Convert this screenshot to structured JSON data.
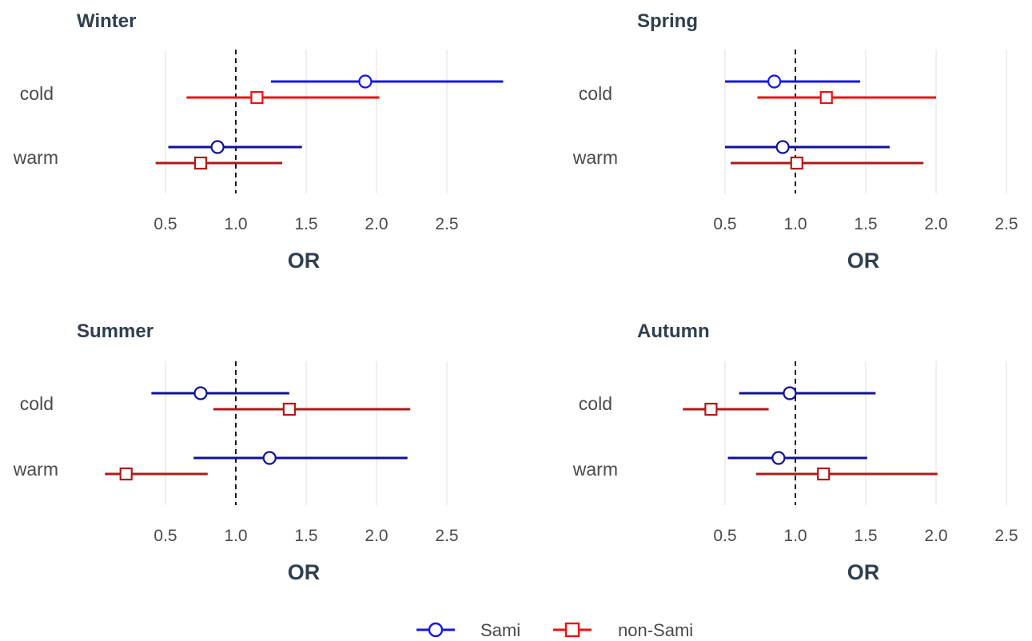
{
  "chart_data": [
    {
      "type": "forest",
      "title": "Winter",
      "xlabel": "OR",
      "categories": [
        "cold",
        "warm"
      ],
      "xticks": [
        0.5,
        1.0,
        1.5,
        2.0,
        2.5
      ],
      "xtick_labels": [
        "0.5",
        "1.0",
        "1.5",
        "2.0",
        "2.5"
      ],
      "xlim": [
        0.35,
        2.95
      ],
      "reference_line": 1.0,
      "series": [
        {
          "name": "Sami",
          "points": [
            {
              "category": "cold",
              "estimate": 1.92,
              "lower": 1.25,
              "upper": 2.9,
              "color": "#1414f0"
            },
            {
              "category": "warm",
              "estimate": 0.87,
              "lower": 0.52,
              "upper": 1.47,
              "color": "#10109a"
            }
          ]
        },
        {
          "name": "non-Sami",
          "points": [
            {
              "category": "cold",
              "estimate": 1.15,
              "lower": 0.65,
              "upper": 2.02,
              "color": "#ee1111"
            },
            {
              "category": "warm",
              "estimate": 0.75,
              "lower": 0.43,
              "upper": 1.33,
              "color": "#b21818"
            }
          ]
        }
      ]
    },
    {
      "type": "forest",
      "title": "Spring",
      "xlabel": "OR",
      "categories": [
        "cold",
        "warm"
      ],
      "xticks": [
        0.5,
        1.0,
        1.5,
        2.0,
        2.5
      ],
      "xtick_labels": [
        "0.5",
        "1.0",
        "1.5",
        "2.0",
        "2.5"
      ],
      "xlim": [
        0.35,
        2.95
      ],
      "reference_line": 1.0,
      "series": [
        {
          "name": "Sami",
          "points": [
            {
              "category": "cold",
              "estimate": 0.85,
              "lower": 0.5,
              "upper": 1.46,
              "color": "#1414f0"
            },
            {
              "category": "warm",
              "estimate": 0.91,
              "lower": 0.5,
              "upper": 1.67,
              "color": "#10109a"
            }
          ]
        },
        {
          "name": "non-Sami",
          "points": [
            {
              "category": "cold",
              "estimate": 1.22,
              "lower": 0.73,
              "upper": 2.0,
              "color": "#ee1111"
            },
            {
              "category": "warm",
              "estimate": 1.01,
              "lower": 0.54,
              "upper": 1.91,
              "color": "#b21818"
            }
          ]
        }
      ]
    },
    {
      "type": "forest",
      "title": "Summer",
      "xlabel": "OR",
      "categories": [
        "cold",
        "warm"
      ],
      "xticks": [
        0.5,
        1.0,
        1.5,
        2.0,
        2.5
      ],
      "xtick_labels": [
        "0.5",
        "1.0",
        "1.5",
        "2.0",
        "2.5"
      ],
      "xlim": [
        0.35,
        2.95
      ],
      "reference_line": 1.0,
      "series": [
        {
          "name": "Sami",
          "points": [
            {
              "category": "cold",
              "estimate": 0.75,
              "lower": 0.4,
              "upper": 1.38,
              "color": "#10109a"
            },
            {
              "category": "warm",
              "estimate": 1.24,
              "lower": 0.7,
              "upper": 2.22,
              "color": "#10109a"
            }
          ]
        },
        {
          "name": "non-Sami",
          "points": [
            {
              "category": "cold",
              "estimate": 1.38,
              "lower": 0.84,
              "upper": 2.24,
              "color": "#b21818"
            },
            {
              "category": "warm",
              "estimate": 0.22,
              "lower": 0.07,
              "upper": 0.8,
              "color": "#b21818"
            }
          ]
        }
      ]
    },
    {
      "type": "forest",
      "title": "Autumn",
      "xlabel": "OR",
      "categories": [
        "cold",
        "warm"
      ],
      "xticks": [
        0.5,
        1.0,
        1.5,
        2.0,
        2.5
      ],
      "xtick_labels": [
        "0.5",
        "1.0",
        "1.5",
        "2.0",
        "2.5"
      ],
      "xlim": [
        0.35,
        2.95
      ],
      "reference_line": 1.0,
      "series": [
        {
          "name": "Sami",
          "points": [
            {
              "category": "cold",
              "estimate": 0.96,
              "lower": 0.6,
              "upper": 1.57,
              "color": "#10109a"
            },
            {
              "category": "warm",
              "estimate": 0.88,
              "lower": 0.52,
              "upper": 1.51,
              "color": "#10109a"
            }
          ]
        },
        {
          "name": "non-Sami",
          "points": [
            {
              "category": "cold",
              "estimate": 0.4,
              "lower": 0.2,
              "upper": 0.81,
              "color": "#b21818"
            },
            {
              "category": "warm",
              "estimate": 1.2,
              "lower": 0.72,
              "upper": 2.01,
              "color": "#b21818"
            }
          ]
        }
      ]
    }
  ],
  "legend": {
    "placement": "bottom",
    "items": [
      {
        "label": "Sami",
        "marker": "circle",
        "color": "#1414f0"
      },
      {
        "label": "non-Sami",
        "marker": "square",
        "color": "#ee1111"
      }
    ]
  },
  "colors": {
    "grid": "#e4e4e4",
    "reference_line": "#000000",
    "text": "#2f3f4f"
  }
}
